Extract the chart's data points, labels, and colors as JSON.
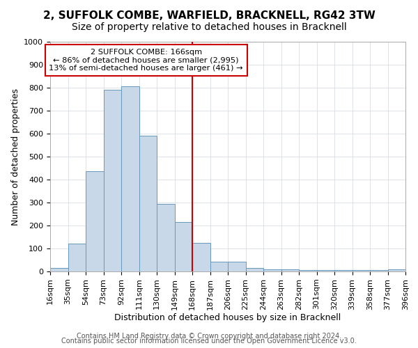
{
  "title": "2, SUFFOLK COMBE, WARFIELD, BRACKNELL, RG42 3TW",
  "subtitle": "Size of property relative to detached houses in Bracknell",
  "xlabel": "Distribution of detached houses by size in Bracknell",
  "ylabel": "Number of detached properties",
  "bar_edges": [
    16,
    35,
    54,
    73,
    92,
    111,
    130,
    149,
    168,
    187,
    206,
    225,
    244,
    263,
    282,
    301,
    320,
    339,
    358,
    377,
    396
  ],
  "bar_heights": [
    15,
    120,
    435,
    790,
    805,
    590,
    295,
    215,
    125,
    42,
    42,
    15,
    10,
    10,
    5,
    5,
    5,
    5,
    5,
    10
  ],
  "bar_color": "#c8d8e8",
  "bar_edge_color": "#6699bb",
  "vline_x": 168,
  "vline_color": "#cc0000",
  "annotation_title": "2 SUFFOLK COMBE: 166sqm",
  "annotation_line1": "← 86% of detached houses are smaller (2,995)",
  "annotation_line2": "13% of semi-detached houses are larger (461) →",
  "annotation_box_color": "#cc0000",
  "xlim": [
    16,
    396
  ],
  "ylim": [
    0,
    1000
  ],
  "yticks": [
    0,
    100,
    200,
    300,
    400,
    500,
    600,
    700,
    800,
    900,
    1000
  ],
  "xtick_labels": [
    "16sqm",
    "35sqm",
    "54sqm",
    "73sqm",
    "92sqm",
    "111sqm",
    "130sqm",
    "149sqm",
    "168sqm",
    "187sqm",
    "206sqm",
    "225sqm",
    "244sqm",
    "263sqm",
    "282sqm",
    "301sqm",
    "320sqm",
    "339sqm",
    "358sqm",
    "377sqm",
    "396sqm"
  ],
  "footer_line1": "Contains HM Land Registry data © Crown copyright and database right 2024.",
  "footer_line2": "Contains public sector information licensed under the Open Government Licence v3.0.",
  "bg_color": "#ffffff",
  "grid_color": "#d0d8e0",
  "title_fontsize": 11,
  "subtitle_fontsize": 10,
  "axis_label_fontsize": 9,
  "tick_fontsize": 8,
  "footer_fontsize": 7
}
